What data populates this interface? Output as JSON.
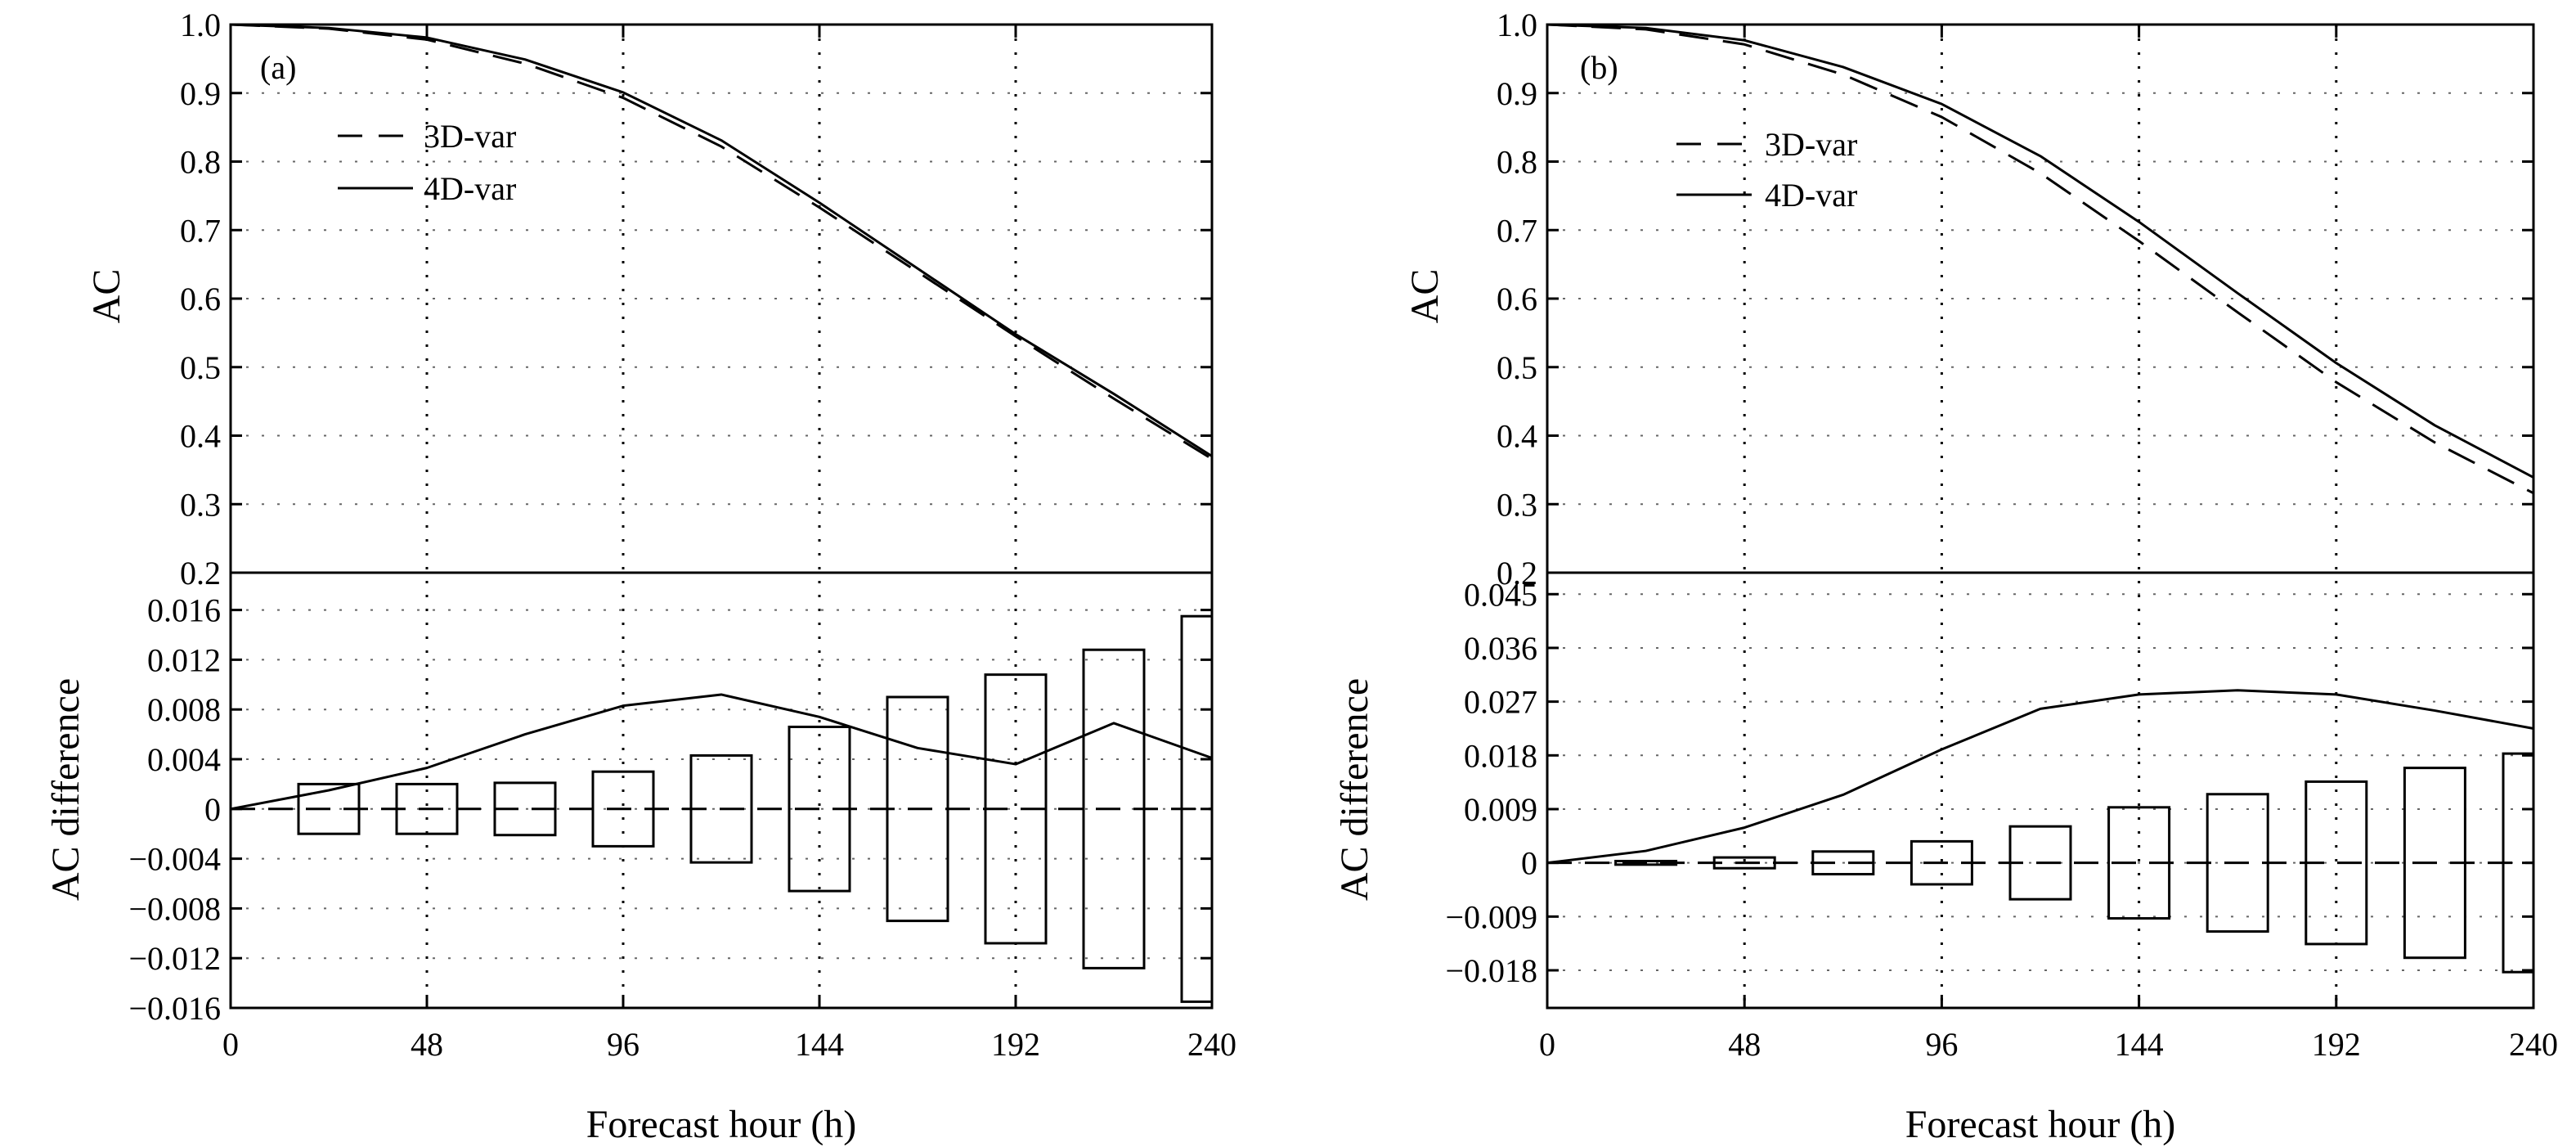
{
  "colors": {
    "line": "#000000",
    "grid": "#666666",
    "background": "#ffffff"
  },
  "chart_data": [
    {
      "type": "line",
      "panel_label": "(a)",
      "top": {
        "ylabel": "AC",
        "ylim": [
          0.2,
          1.0
        ],
        "yticks": [
          0.2,
          0.3,
          0.4,
          0.5,
          0.6,
          0.7,
          0.8,
          0.9,
          1.0
        ],
        "ytick_labels": [
          "0.2",
          "0.3",
          "0.4",
          "0.5",
          "0.6",
          "0.7",
          "0.8",
          "0.9",
          "1.0"
        ],
        "legend": {
          "placement": "upper-left"
        },
        "series": [
          {
            "name": "3D-var",
            "style": "dashed",
            "x": [
              0,
              24,
              48,
              72,
              96,
              120,
              144,
              168,
              192,
              216,
              240
            ],
            "y": [
              1.0,
              0.994,
              0.978,
              0.943,
              0.893,
              0.822,
              0.733,
              0.639,
              0.545,
              0.454,
              0.366
            ]
          },
          {
            "name": "4D-var",
            "style": "solid",
            "x": [
              0,
              24,
              48,
              72,
              96,
              120,
              144,
              168,
              192,
              216,
              240
            ],
            "y": [
              1.0,
              0.995,
              0.981,
              0.949,
              0.901,
              0.831,
              0.74,
              0.644,
              0.548,
              0.461,
              0.37
            ]
          }
        ]
      },
      "bottom": {
        "ylabel": "AC difference",
        "ylim": [
          -0.016,
          0.019
        ],
        "yticks": [
          -0.016,
          -0.012,
          -0.008,
          -0.004,
          0,
          0.004,
          0.008,
          0.012,
          0.016
        ],
        "ytick_labels": [
          "−0.016",
          "−0.012",
          "−0.008",
          "−0.004",
          "0",
          "0.004",
          "0.008",
          "0.012",
          "0.016"
        ],
        "reference_lines": [
          0,
          -0.016
        ],
        "line": {
          "x": [
            0,
            24,
            48,
            72,
            96,
            120,
            144,
            168,
            192,
            216,
            240
          ],
          "y": [
            0,
            0.0015,
            0.0033,
            0.006,
            0.0083,
            0.0092,
            0.0074,
            0.0049,
            0.0036,
            0.0069,
            0.0041
          ]
        },
        "bars": {
          "x": [
            24,
            48,
            72,
            96,
            120,
            144,
            168,
            192,
            216,
            240
          ],
          "half_range": [
            0.002,
            0.002,
            0.0021,
            0.003,
            0.0043,
            0.0066,
            0.009,
            0.0108,
            0.0128,
            0.0155
          ]
        }
      },
      "x": {
        "label": "Forecast hour (h)",
        "xlim": [
          0,
          240
        ],
        "ticks": [
          0,
          48,
          96,
          144,
          192,
          240
        ],
        "tick_labels": [
          "0",
          "48",
          "96",
          "144",
          "192",
          "240"
        ]
      }
    },
    {
      "type": "line",
      "panel_label": "(b)",
      "top": {
        "ylabel": "AC",
        "ylim": [
          0.2,
          1.0
        ],
        "yticks": [
          0.2,
          0.3,
          0.4,
          0.5,
          0.6,
          0.7,
          0.8,
          0.9,
          1.0
        ],
        "ytick_labels": [
          "0.2",
          "0.3",
          "0.4",
          "0.5",
          "0.6",
          "0.7",
          "0.8",
          "0.9",
          "1.0"
        ],
        "legend": {
          "placement": "upper-left"
        },
        "series": [
          {
            "name": "3D-var",
            "style": "dashed",
            "x": [
              0,
              24,
              48,
              72,
              96,
              120,
              144,
              168,
              192,
              216,
              240
            ],
            "y": [
              1.0,
              0.993,
              0.971,
              0.927,
              0.865,
              0.783,
              0.684,
              0.58,
              0.478,
              0.39,
              0.316
            ]
          },
          {
            "name": "4D-var",
            "style": "solid",
            "x": [
              0,
              24,
              48,
              72,
              96,
              120,
              144,
              168,
              192,
              216,
              240
            ],
            "y": [
              1.0,
              0.995,
              0.977,
              0.938,
              0.884,
              0.808,
              0.712,
              0.608,
              0.506,
              0.415,
              0.339
            ]
          }
        ]
      },
      "bottom": {
        "ylabel": "AC difference",
        "ylim": [
          -0.0243,
          0.0486
        ],
        "yticks": [
          -0.018,
          -0.009,
          0,
          0.009,
          0.018,
          0.027,
          0.036,
          0.045
        ],
        "ytick_labels": [
          "−0.018",
          "−0.009",
          "0",
          "0.009",
          "0.018",
          "0.027",
          "0.036",
          "0.045"
        ],
        "reference_lines": [
          0
        ],
        "line": {
          "x": [
            0,
            24,
            48,
            72,
            96,
            120,
            144,
            168,
            192,
            216,
            240
          ],
          "y": [
            0,
            0.002,
            0.0059,
            0.0114,
            0.019,
            0.0258,
            0.0282,
            0.0289,
            0.0282,
            0.0255,
            0.0225
          ]
        },
        "bars": {
          "x": [
            24,
            48,
            72,
            96,
            120,
            144,
            168,
            192,
            216,
            240
          ],
          "half_range": [
            0.0003,
            0.0009,
            0.0019,
            0.0036,
            0.0061,
            0.0093,
            0.0115,
            0.0136,
            0.0159,
            0.0183
          ]
        }
      },
      "x": {
        "label": "Forecast hour (h)",
        "xlim": [
          0,
          240
        ],
        "ticks": [
          0,
          48,
          96,
          144,
          192,
          240
        ],
        "tick_labels": [
          "0",
          "48",
          "96",
          "144",
          "192",
          "240"
        ]
      }
    }
  ]
}
